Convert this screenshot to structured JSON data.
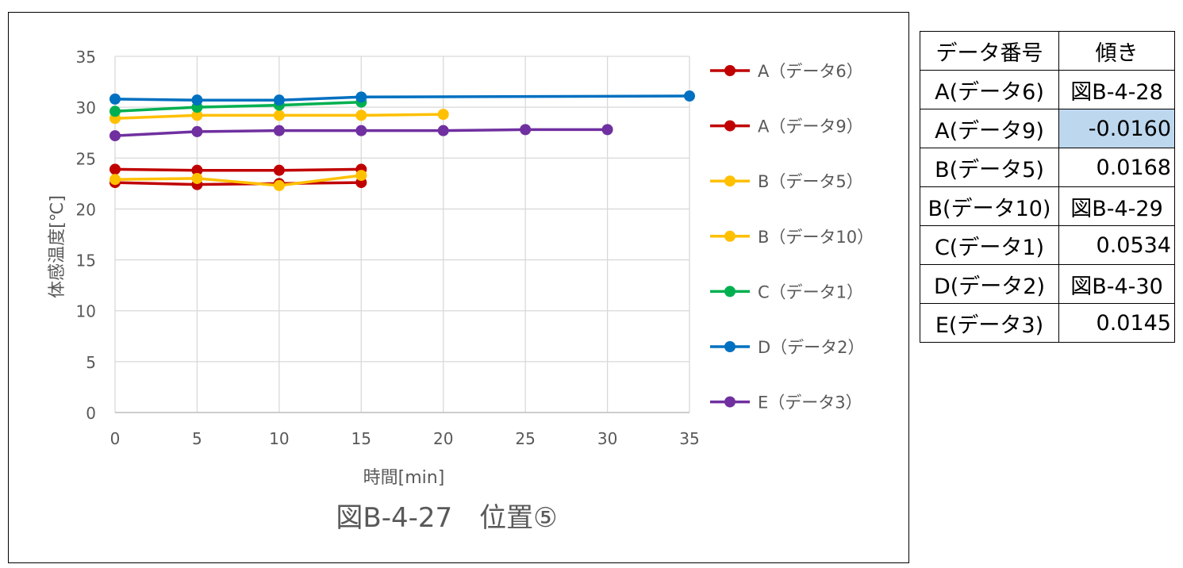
{
  "chart_data": {
    "type": "line",
    "title": "図B-4-27　位置⑤",
    "xlabel": "時間[min]",
    "ylabel": "体感温度[℃]",
    "xlim": [
      0,
      35
    ],
    "ylim": [
      0,
      35
    ],
    "xticks": [
      "0",
      "5",
      "10",
      "15",
      "20",
      "25",
      "30",
      "35"
    ],
    "yticks": [
      "0",
      "5",
      "10",
      "15",
      "20",
      "25",
      "30",
      "35"
    ],
    "grid": true,
    "legend_position": "right",
    "series": [
      {
        "name": "A（データ6）",
        "color": "#c00000",
        "x": [
          0,
          5,
          10,
          15
        ],
        "y": [
          22.6,
          22.4,
          22.5,
          22.6
        ]
      },
      {
        "name": "A（データ9）",
        "color": "#c00000",
        "x": [
          0,
          5,
          10,
          15
        ],
        "y": [
          23.9,
          23.8,
          23.8,
          23.9
        ]
      },
      {
        "name": "B（データ5）",
        "color": "#ffc000",
        "x": [
          0,
          5,
          10,
          15
        ],
        "y": [
          22.9,
          23.0,
          22.3,
          23.3
        ]
      },
      {
        "name": "B（データ10）",
        "color": "#ffc000",
        "x": [
          0,
          5,
          10,
          15,
          20
        ],
        "y": [
          28.9,
          29.2,
          29.2,
          29.2,
          29.3
        ]
      },
      {
        "name": "C（データ1）",
        "color": "#00b050",
        "x": [
          0,
          5,
          10,
          15
        ],
        "y": [
          29.6,
          30.0,
          30.2,
          30.5
        ]
      },
      {
        "name": "D（データ2）",
        "color": "#0070c0",
        "x": [
          0,
          5,
          10,
          15,
          35
        ],
        "y": [
          30.8,
          30.7,
          30.7,
          31.0,
          31.1
        ]
      },
      {
        "name": "E（データ3）",
        "color": "#7030a0",
        "x": [
          0,
          5,
          10,
          15,
          20,
          25,
          30
        ],
        "y": [
          27.2,
          27.6,
          27.7,
          27.7,
          27.7,
          27.8,
          27.8
        ]
      }
    ]
  },
  "table": {
    "header": [
      "データ番号",
      "傾き"
    ],
    "rows": [
      {
        "label": "A(データ6)",
        "value": "図B-4-28",
        "kind": "txt",
        "highlight": false
      },
      {
        "label": "A(データ9)",
        "value": "-0.0160",
        "kind": "num",
        "highlight": true
      },
      {
        "label": "B(データ5)",
        "value": "0.0168",
        "kind": "num",
        "highlight": false
      },
      {
        "label": "B(データ10)",
        "value": "図B-4-29",
        "kind": "txt",
        "highlight": false
      },
      {
        "label": "C(データ1)",
        "value": "0.0534",
        "kind": "num",
        "highlight": false
      },
      {
        "label": "D(データ2)",
        "value": "図B-4-30",
        "kind": "txt",
        "highlight": false
      },
      {
        "label": "E(データ3)",
        "value": "0.0145",
        "kind": "num",
        "highlight": false
      }
    ],
    "highlight_color": "#bdd7ee"
  }
}
